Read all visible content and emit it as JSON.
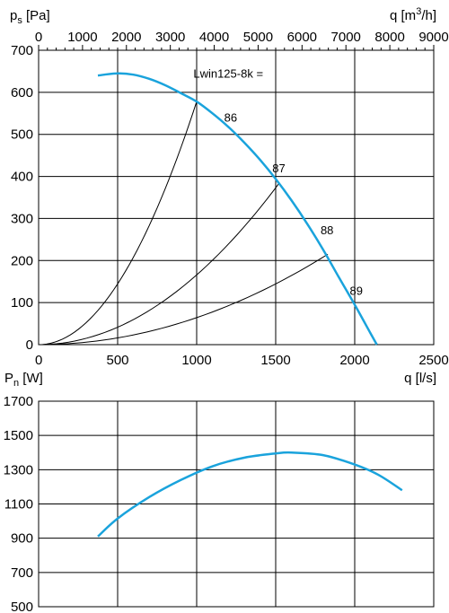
{
  "chart_data": [
    {
      "type": "line",
      "top_axis": {
        "label_main": "q [m",
        "label_sup": "3",
        "label_tail": "/h]",
        "ticks": [
          "0",
          "1000",
          "2000",
          "3000",
          "4000",
          "5000",
          "6000",
          "7000",
          "8000",
          "9000"
        ],
        "range": [
          0,
          9000
        ]
      },
      "y_axis": {
        "label_main": "p",
        "label_sub": "s",
        "label_tail": " [Pa]",
        "ticks": [
          "0",
          "100",
          "200",
          "300",
          "400",
          "500",
          "600",
          "700"
        ],
        "range": [
          0,
          700
        ]
      },
      "x_axis": {
        "label": "q [l/s]",
        "ticks": [
          "0",
          "500",
          "1000",
          "1500",
          "2000",
          "2500"
        ],
        "range": [
          0,
          2500
        ]
      },
      "grid": "major",
      "fan_curve": {
        "color": "#1aa3dc",
        "points": [
          [
            375,
            640
          ],
          [
            500,
            645
          ],
          [
            600,
            642
          ],
          [
            700,
            632
          ],
          [
            800,
            617
          ],
          [
            900,
            598
          ],
          [
            1000,
            578
          ],
          [
            1100,
            550
          ],
          [
            1200,
            518
          ],
          [
            1300,
            481
          ],
          [
            1400,
            440
          ],
          [
            1500,
            394
          ],
          [
            1600,
            343
          ],
          [
            1700,
            287
          ],
          [
            1800,
            226
          ],
          [
            1900,
            160
          ],
          [
            2000,
            95
          ],
          [
            2100,
            27
          ],
          [
            2140,
            0
          ]
        ]
      },
      "system_curves": [
        {
          "label": "86",
          "end": [
            1000,
            578
          ]
        },
        {
          "label": "87",
          "end": [
            1520,
            383
          ]
        },
        {
          "label": "88",
          "end": [
            1830,
            215
          ]
        }
      ],
      "annotations": [
        {
          "text": "Lwin125-8k =",
          "x": 1200,
          "y": 635
        },
        {
          "text": "86",
          "x": 1215,
          "y": 530
        },
        {
          "text": "87",
          "x": 1520,
          "y": 410
        },
        {
          "text": "88",
          "x": 1825,
          "y": 262
        },
        {
          "text": "89",
          "x": 2010,
          "y": 118
        }
      ]
    },
    {
      "type": "line",
      "y_axis": {
        "label_main": "P",
        "label_sub": "n",
        "label_tail": " [W]",
        "ticks": [
          "500",
          "700",
          "900",
          "1100",
          "1300",
          "1500",
          "1700"
        ],
        "range": [
          500,
          1700
        ]
      },
      "x_axis": {
        "range": [
          0,
          2500
        ]
      },
      "grid": "major",
      "power_curve": {
        "color": "#1aa3dc",
        "points": [
          [
            375,
            910
          ],
          [
            500,
            1015
          ],
          [
            700,
            1140
          ],
          [
            900,
            1240
          ],
          [
            1100,
            1320
          ],
          [
            1300,
            1370
          ],
          [
            1500,
            1395
          ],
          [
            1600,
            1400
          ],
          [
            1800,
            1385
          ],
          [
            2000,
            1330
          ],
          [
            2150,
            1270
          ],
          [
            2300,
            1180
          ]
        ]
      }
    }
  ]
}
